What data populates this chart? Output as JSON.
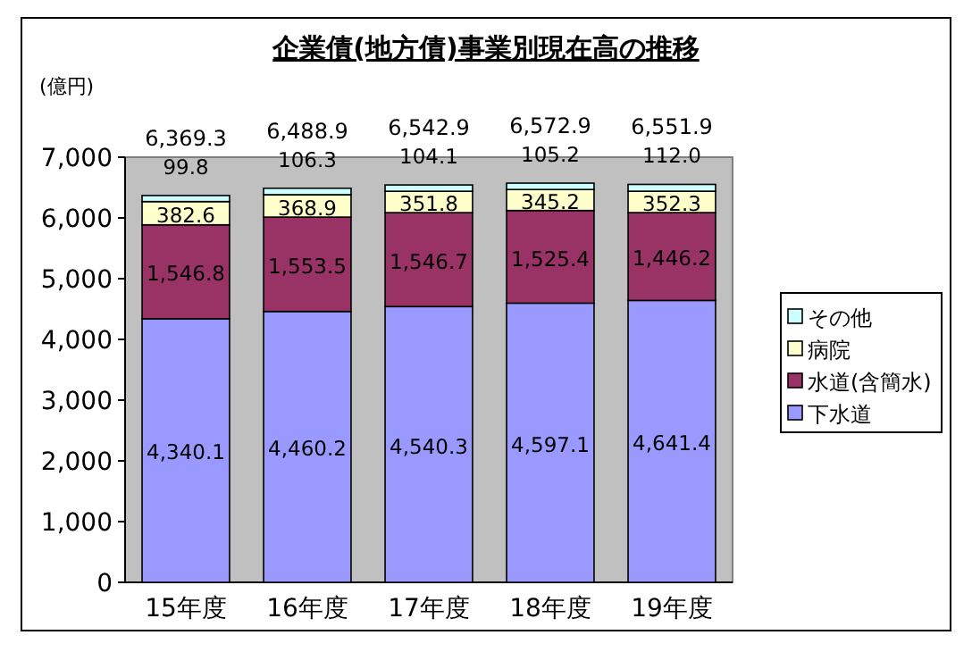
{
  "chart_data": {
    "type": "bar",
    "stacked": true,
    "title": "企業債(地方債)事業別現在高の推移",
    "ylabel": "(億円)",
    "categories": [
      "15年度",
      "16年度",
      "17年度",
      "18年度",
      "19年度"
    ],
    "series": [
      {
        "name": "下水道",
        "color": "#9999ff",
        "values": [
          4340.1,
          4460.2,
          4540.3,
          4597.1,
          4641.4
        ],
        "value_labels": [
          "4,340.1",
          "4,460.2",
          "4,540.3",
          "4,597.1",
          "4,641.4"
        ]
      },
      {
        "name": "水道(含簡水)",
        "color": "#993366",
        "values": [
          1546.8,
          1553.5,
          1546.7,
          1525.4,
          1446.2
        ],
        "value_labels": [
          "1,546.8",
          "1,553.5",
          "1,546.7",
          "1,525.4",
          "1,446.2"
        ]
      },
      {
        "name": "病院",
        "color": "#ffffcc",
        "values": [
          382.6,
          368.9,
          351.8,
          345.2,
          352.3
        ],
        "value_labels": [
          "382.6",
          "368.9",
          "351.8",
          "345.2",
          "352.3"
        ]
      },
      {
        "name": "その他",
        "color": "#ccffff",
        "values": [
          99.8,
          106.3,
          104.1,
          105.2,
          112.0
        ],
        "value_labels": [
          "99.8",
          "106.3",
          "104.1",
          "105.2",
          "112.0"
        ]
      }
    ],
    "totals": [
      "6,369.3",
      "6,488.9",
      "6,542.9",
      "6,572.9",
      "6,551.9"
    ],
    "ylim": [
      0,
      7000
    ],
    "yticks": [
      {
        "value": 0,
        "label": "0"
      },
      {
        "value": 1000,
        "label": "1,000"
      },
      {
        "value": 2000,
        "label": "2,000"
      },
      {
        "value": 3000,
        "label": "3,000"
      },
      {
        "value": 4000,
        "label": "4,000"
      },
      {
        "value": 5000,
        "label": "5,000"
      },
      {
        "value": 6000,
        "label": "6,000"
      },
      {
        "value": 7000,
        "label": "7,000"
      }
    ],
    "legend": "right"
  }
}
